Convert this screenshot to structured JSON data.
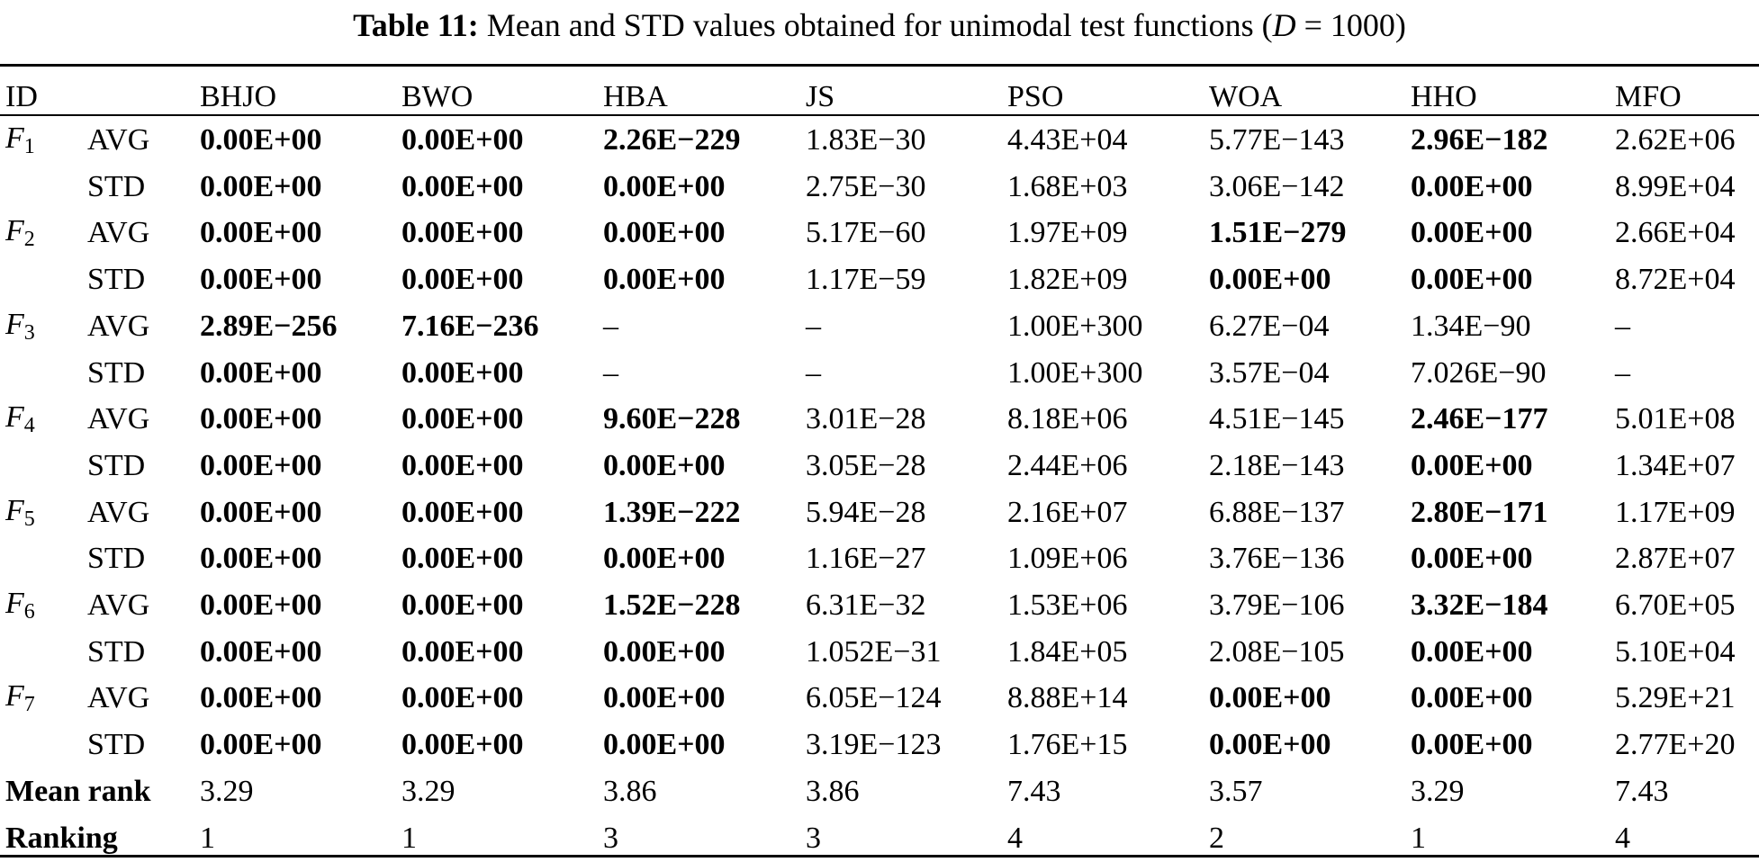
{
  "title": {
    "label": "Table 11:",
    "text": "Mean and STD values obtained for unimodal test functions (",
    "var": "D",
    "rest": " = 1000)"
  },
  "table": {
    "id": "ID",
    "columns": [
      "BHJO",
      "BWO",
      "HBA",
      "JS",
      "PSO",
      "WOA",
      "HHO",
      "MFO"
    ],
    "functions": [
      {
        "name": "F",
        "sub": "1",
        "rows": [
          {
            "stat": "AVG",
            "cells": [
              "0.00E+00",
              "0.00E+00",
              "2.26E−229",
              "1.83E−30",
              "4.43E+04",
              "5.77E−143",
              "2.96E−182",
              "2.62E+06"
            ],
            "bold": [
              true,
              true,
              true,
              false,
              false,
              false,
              true,
              false
            ]
          },
          {
            "stat": "STD",
            "cells": [
              "0.00E+00",
              "0.00E+00",
              "0.00E+00",
              "2.75E−30",
              "1.68E+03",
              "3.06E−142",
              "0.00E+00",
              "8.99E+04"
            ],
            "bold": [
              true,
              true,
              true,
              false,
              false,
              false,
              true,
              false
            ]
          }
        ]
      },
      {
        "name": "F",
        "sub": "2",
        "rows": [
          {
            "stat": "AVG",
            "cells": [
              "0.00E+00",
              "0.00E+00",
              "0.00E+00",
              "5.17E−60",
              "1.97E+09",
              "1.51E−279",
              "0.00E+00",
              "2.66E+04"
            ],
            "bold": [
              true,
              true,
              true,
              false,
              false,
              true,
              true,
              false
            ]
          },
          {
            "stat": "STD",
            "cells": [
              "0.00E+00",
              "0.00E+00",
              "0.00E+00",
              "1.17E−59",
              "1.82E+09",
              "0.00E+00",
              "0.00E+00",
              "8.72E+04"
            ],
            "bold": [
              true,
              true,
              true,
              false,
              false,
              true,
              true,
              false
            ]
          }
        ]
      },
      {
        "name": "F",
        "sub": "3",
        "rows": [
          {
            "stat": "AVG",
            "cells": [
              "2.89E−256",
              "7.16E−236",
              "–",
              "–",
              "1.00E+300",
              "6.27E−04",
              "1.34E−90",
              "–"
            ],
            "bold": [
              true,
              true,
              false,
              false,
              false,
              false,
              false,
              false
            ]
          },
          {
            "stat": "STD",
            "cells": [
              "0.00E+00",
              "0.00E+00",
              "–",
              "–",
              "1.00E+300",
              "3.57E−04",
              "7.026E−90",
              "–"
            ],
            "bold": [
              true,
              true,
              false,
              false,
              false,
              false,
              false,
              false
            ]
          }
        ]
      },
      {
        "name": "F",
        "sub": "4",
        "rows": [
          {
            "stat": "AVG",
            "cells": [
              "0.00E+00",
              "0.00E+00",
              "9.60E−228",
              "3.01E−28",
              "8.18E+06",
              "4.51E−145",
              "2.46E−177",
              "5.01E+08"
            ],
            "bold": [
              true,
              true,
              true,
              false,
              false,
              false,
              true,
              false
            ]
          },
          {
            "stat": "STD",
            "cells": [
              "0.00E+00",
              "0.00E+00",
              "0.00E+00",
              "3.05E−28",
              "2.44E+06",
              "2.18E−143",
              "0.00E+00",
              "1.34E+07"
            ],
            "bold": [
              true,
              true,
              true,
              false,
              false,
              false,
              true,
              false
            ]
          }
        ]
      },
      {
        "name": "F",
        "sub": "5",
        "rows": [
          {
            "stat": "AVG",
            "cells": [
              "0.00E+00",
              "0.00E+00",
              "1.39E−222",
              "5.94E−28",
              "2.16E+07",
              "6.88E−137",
              "2.80E−171",
              "1.17E+09"
            ],
            "bold": [
              true,
              true,
              true,
              false,
              false,
              false,
              true,
              false
            ]
          },
          {
            "stat": "STD",
            "cells": [
              "0.00E+00",
              "0.00E+00",
              "0.00E+00",
              "1.16E−27",
              "1.09E+06",
              "3.76E−136",
              "0.00E+00",
              "2.87E+07"
            ],
            "bold": [
              true,
              true,
              true,
              false,
              false,
              false,
              true,
              false
            ]
          }
        ]
      },
      {
        "name": "F",
        "sub": "6",
        "rows": [
          {
            "stat": "AVG",
            "cells": [
              "0.00E+00",
              "0.00E+00",
              "1.52E−228",
              "6.31E−32",
              "1.53E+06",
              "3.79E−106",
              "3.32E−184",
              "6.70E+05"
            ],
            "bold": [
              true,
              true,
              true,
              false,
              false,
              false,
              true,
              false
            ]
          },
          {
            "stat": "STD",
            "cells": [
              "0.00E+00",
              "0.00E+00",
              "0.00E+00",
              "1.052E−31",
              "1.84E+05",
              "2.08E−105",
              "0.00E+00",
              "5.10E+04"
            ],
            "bold": [
              true,
              true,
              true,
              false,
              false,
              false,
              true,
              false
            ]
          }
        ]
      },
      {
        "name": "F",
        "sub": "7",
        "rows": [
          {
            "stat": "AVG",
            "cells": [
              "0.00E+00",
              "0.00E+00",
              "0.00E+00",
              "6.05E−124",
              "8.88E+14",
              "0.00E+00",
              "0.00E+00",
              "5.29E+21"
            ],
            "bold": [
              true,
              true,
              true,
              false,
              false,
              true,
              true,
              false
            ]
          },
          {
            "stat": "STD",
            "cells": [
              "0.00E+00",
              "0.00E+00",
              "0.00E+00",
              "3.19E−123",
              "1.76E+15",
              "0.00E+00",
              "0.00E+00",
              "2.77E+20"
            ],
            "bold": [
              true,
              true,
              true,
              false,
              false,
              true,
              true,
              false
            ]
          }
        ]
      }
    ],
    "summary": [
      {
        "label": "Mean rank",
        "cells": [
          3.29,
          3.29,
          3.86,
          3.86,
          7.43,
          3.57,
          3.29,
          7.43
        ]
      },
      {
        "label": "Ranking",
        "cells": [
          1,
          1,
          3,
          3,
          4,
          2,
          1,
          4
        ]
      }
    ]
  }
}
